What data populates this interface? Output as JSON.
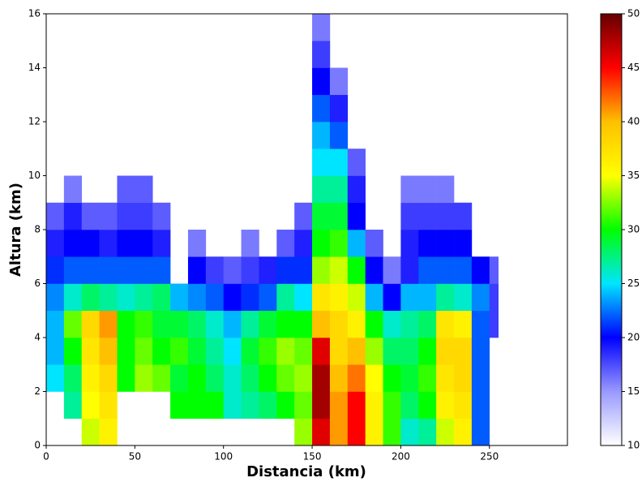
{
  "chart_data": {
    "type": "heatmap",
    "xlabel": "Distancia (km)",
    "ylabel": "Altura (km)",
    "xlim": [
      0,
      294
    ],
    "ylim": [
      0,
      16
    ],
    "xticks": [
      0,
      50,
      100,
      150,
      200,
      250
    ],
    "yticks": [
      0,
      2,
      4,
      6,
      8,
      10,
      12,
      14,
      16
    ],
    "clim": [
      10,
      50
    ],
    "cticks": [
      10,
      15,
      20,
      25,
      30,
      35,
      40,
      45,
      50
    ],
    "colormap": [
      "#ffffff",
      "#9999ff",
      "#0000ff",
      "#00e5ff",
      "#00ff00",
      "#ffff00",
      "#ffc000",
      "#ff0000",
      "#660000"
    ],
    "x_edges": [
      0,
      10,
      20,
      30,
      40,
      50,
      60,
      70,
      80,
      90,
      100,
      110,
      120,
      130,
      140,
      150,
      160,
      170,
      180,
      190,
      200,
      210,
      220,
      230,
      240,
      250,
      255
    ],
    "y_edges": [
      0,
      1,
      2,
      3,
      4,
      5,
      6,
      7,
      8,
      9,
      10,
      11,
      12,
      13,
      14,
      15,
      16
    ],
    "values": [
      [
        null,
        null,
        25,
        24,
        24,
        23,
        21,
        19,
        17,
        null,
        null,
        null,
        null,
        null,
        null,
        null
      ],
      [
        null,
        27,
        28,
        30,
        32,
        26,
        22,
        20,
        19,
        16,
        null,
        null,
        null,
        null,
        null,
        null
      ],
      [
        34,
        35,
        36,
        37,
        38,
        28,
        22,
        20,
        17,
        null,
        null,
        null,
        null,
        null,
        null,
        null
      ],
      [
        36,
        37,
        38,
        40,
        41,
        27,
        22,
        19,
        17,
        null,
        null,
        null,
        null,
        null,
        null,
        null
      ],
      [
        null,
        null,
        30,
        30,
        30,
        26,
        22,
        20,
        18,
        17,
        null,
        null,
        null,
        null,
        null,
        null
      ],
      [
        null,
        null,
        33,
        32,
        31,
        27,
        22,
        20,
        18,
        17,
        null,
        null,
        null,
        null,
        null,
        null
      ],
      [
        null,
        null,
        32,
        30,
        29,
        28,
        22,
        19,
        17,
        null,
        null,
        null,
        null,
        null,
        null,
        null
      ],
      [
        null,
        30,
        29,
        31,
        29,
        24,
        null,
        null,
        null,
        null,
        null,
        null,
        null,
        null,
        null,
        null
      ],
      [
        null,
        30,
        30,
        29,
        28,
        23,
        20,
        16,
        null,
        null,
        null,
        null,
        null,
        null,
        null,
        null
      ],
      [
        null,
        30,
        28,
        27,
        26,
        22,
        18,
        null,
        null,
        null,
        null,
        null,
        null,
        null,
        null,
        null
      ],
      [
        null,
        26,
        26,
        25,
        24,
        20,
        17,
        null,
        null,
        null,
        null,
        null,
        null,
        null,
        null,
        null
      ],
      [
        null,
        27,
        28,
        29,
        27,
        21,
        18,
        16,
        null,
        null,
        null,
        null,
        null,
        null,
        null,
        null
      ],
      [
        null,
        28,
        30,
        31,
        29,
        22,
        19,
        null,
        null,
        null,
        null,
        null,
        null,
        null,
        null,
        null
      ],
      [
        null,
        30,
        32,
        33,
        30,
        27,
        21,
        17,
        null,
        null,
        null,
        null,
        null,
        null,
        null,
        null
      ],
      [
        33,
        32,
        33,
        32,
        30,
        25,
        21,
        19,
        17,
        null,
        null,
        null,
        null,
        null,
        null,
        null
      ],
      [
        46,
        48,
        48,
        46,
        40,
        37,
        33,
        30,
        29,
        27,
        25,
        24,
        22,
        20,
        18,
        16
      ],
      [
        41,
        41,
        40,
        38,
        38,
        36,
        34,
        31,
        29,
        27,
        25,
        22,
        19,
        16,
        null,
        null
      ],
      [
        45,
        45,
        42,
        40,
        36,
        34,
        30,
        24,
        20,
        19,
        17,
        null,
        null,
        null,
        null,
        null
      ],
      [
        36,
        36,
        35,
        33,
        30,
        24,
        20,
        17,
        null,
        null,
        null,
        null,
        null,
        null,
        null,
        null
      ],
      [
        31,
        31,
        30,
        28,
        26,
        20,
        16,
        null,
        null,
        null,
        null,
        null,
        null,
        null,
        null,
        null
      ],
      [
        26,
        28,
        29,
        28,
        27,
        24,
        19,
        19,
        18,
        16,
        null,
        null,
        null,
        null,
        null,
        null
      ],
      [
        27,
        30,
        31,
        30,
        28,
        24,
        22,
        20,
        18,
        16,
        null,
        null,
        null,
        null,
        null,
        null
      ],
      [
        34,
        36,
        37,
        38,
        37,
        27,
        22,
        20,
        18,
        16,
        null,
        null,
        null,
        null,
        null,
        null
      ],
      [
        36,
        37,
        38,
        38,
        36,
        26,
        22,
        20,
        18,
        null,
        null,
        null,
        null,
        null,
        null,
        null
      ],
      [
        22,
        22,
        22,
        22,
        22,
        23,
        20,
        null,
        null,
        null,
        null,
        null,
        null,
        null,
        null,
        null
      ],
      [
        null,
        null,
        null,
        null,
        18,
        18,
        17,
        null,
        null,
        null,
        null,
        null,
        null,
        null,
        null,
        null
      ]
    ]
  }
}
